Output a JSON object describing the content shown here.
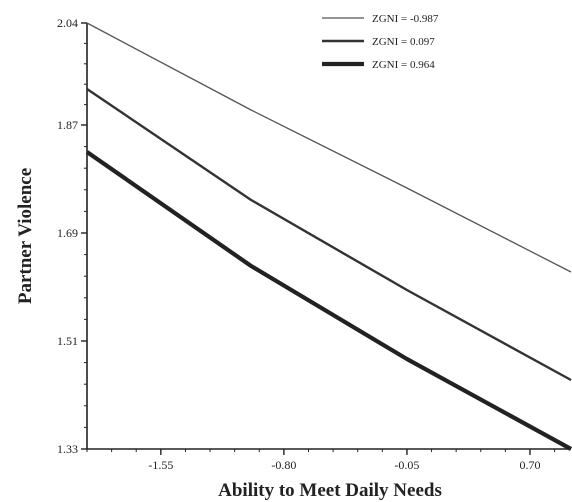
{
  "chart_data": {
    "type": "line",
    "title": "",
    "xlabel": "Ability to Meet Daily Needs",
    "ylabel": "Partner Violence",
    "x_ticks": [
      "-1.55",
      "-0.80",
      "-0.05",
      "0.70"
    ],
    "y_ticks": [
      "2.04",
      "1.87",
      "1.69",
      "1.51",
      "1.33"
    ],
    "xlim": [
      -2.0,
      0.95
    ],
    "ylim": [
      1.33,
      2.04
    ],
    "grid": false,
    "legend_position": "top-right",
    "series": [
      {
        "name": "ZGNI = -0.987",
        "x": [
          -2.0,
          -1.0,
          -0.05,
          0.95
        ],
        "y": [
          2.04,
          1.895,
          1.765,
          1.625
        ],
        "line_width": "thin",
        "color": "#555555"
      },
      {
        "name": "ZGNI = 0.097",
        "x": [
          -2.0,
          -1.0,
          -0.05,
          0.95
        ],
        "y": [
          1.93,
          1.745,
          1.595,
          1.445
        ],
        "line_width": "medium",
        "color": "#333333"
      },
      {
        "name": "ZGNI = 0.964",
        "x": [
          -2.0,
          -1.0,
          -0.05,
          0.95
        ],
        "y": [
          1.825,
          1.635,
          1.48,
          1.33
        ],
        "line_width": "thick",
        "color": "#222222"
      }
    ]
  }
}
